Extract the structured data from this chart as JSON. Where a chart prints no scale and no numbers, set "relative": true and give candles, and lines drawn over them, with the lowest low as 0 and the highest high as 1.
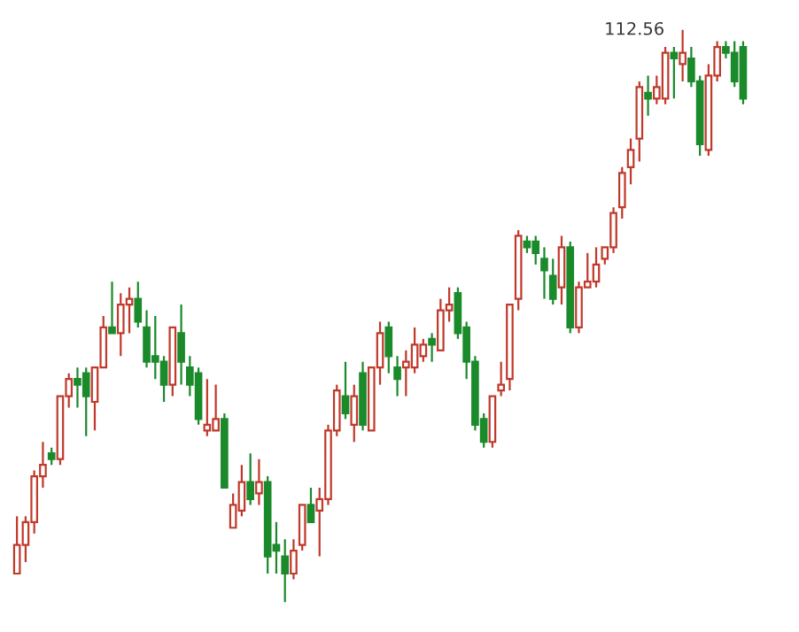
{
  "chart_data": {
    "type": "candlestick",
    "relative": true,
    "categories": [
      null,
      null,
      null,
      null,
      null,
      null,
      null,
      null,
      null,
      null,
      null,
      null,
      null,
      null,
      null,
      null,
      null,
      null,
      null,
      null,
      null,
      null,
      null,
      null,
      null,
      null,
      null,
      null,
      null,
      null,
      null,
      null,
      null,
      null,
      null,
      null,
      null,
      null,
      null,
      null,
      null,
      null,
      null,
      null,
      null,
      null,
      null,
      null,
      null,
      null,
      null,
      null,
      null,
      null,
      null,
      null,
      null,
      null,
      null,
      null,
      null,
      null,
      null,
      null,
      null,
      null,
      null,
      null,
      null,
      null,
      null,
      null,
      null,
      null,
      null,
      null,
      null,
      null,
      null,
      null,
      null,
      null,
      null,
      null,
      null
    ],
    "ohlc": [
      [
        0.05,
        0.15,
        0.05,
        0.1
      ],
      [
        0.1,
        0.15,
        0.07,
        0.14
      ],
      [
        0.14,
        0.23,
        0.12,
        0.22
      ],
      [
        0.22,
        0.28,
        0.2,
        0.24
      ],
      [
        0.26,
        0.27,
        0.24,
        0.25
      ],
      [
        0.25,
        0.36,
        0.24,
        0.36
      ],
      [
        0.36,
        0.4,
        0.34,
        0.39
      ],
      [
        0.39,
        0.41,
        0.34,
        0.38
      ],
      [
        0.4,
        0.41,
        0.29,
        0.36
      ],
      [
        0.35,
        0.41,
        0.3,
        0.41
      ],
      [
        0.41,
        0.5,
        0.41,
        0.48
      ],
      [
        0.48,
        0.56,
        0.47,
        0.47
      ],
      [
        0.47,
        0.54,
        0.43,
        0.52
      ],
      [
        0.52,
        0.55,
        0.47,
        0.53
      ],
      [
        0.53,
        0.56,
        0.48,
        0.49
      ],
      [
        0.48,
        0.51,
        0.41,
        0.42
      ],
      [
        0.43,
        0.5,
        0.39,
        0.42
      ],
      [
        0.42,
        0.43,
        0.35,
        0.38
      ],
      [
        0.38,
        0.48,
        0.36,
        0.48
      ],
      [
        0.47,
        0.52,
        0.38,
        0.42
      ],
      [
        0.41,
        0.43,
        0.36,
        0.38
      ],
      [
        0.4,
        0.41,
        0.31,
        0.32
      ],
      [
        0.3,
        0.39,
        0.29,
        0.31
      ],
      [
        0.3,
        0.38,
        0.3,
        0.32
      ],
      [
        0.32,
        0.33,
        0.2,
        0.2
      ],
      [
        0.13,
        0.19,
        0.13,
        0.17
      ],
      [
        0.16,
        0.24,
        0.15,
        0.21
      ],
      [
        0.21,
        0.26,
        0.17,
        0.18
      ],
      [
        0.19,
        0.25,
        0.17,
        0.21
      ],
      [
        0.21,
        0.22,
        0.05,
        0.08
      ],
      [
        0.1,
        0.14,
        0.05,
        0.09
      ],
      [
        0.08,
        0.11,
        0.0,
        0.05
      ],
      [
        0.05,
        0.11,
        0.04,
        0.09
      ],
      [
        0.1,
        0.17,
        0.09,
        0.17
      ],
      [
        0.17,
        0.2,
        0.14,
        0.14
      ],
      [
        0.16,
        0.2,
        0.08,
        0.18
      ],
      [
        0.18,
        0.31,
        0.17,
        0.3
      ],
      [
        0.3,
        0.38,
        0.29,
        0.37
      ],
      [
        0.36,
        0.42,
        0.32,
        0.33
      ],
      [
        0.31,
        0.38,
        0.28,
        0.36
      ],
      [
        0.4,
        0.42,
        0.3,
        0.31
      ],
      [
        0.3,
        0.41,
        0.3,
        0.41
      ],
      [
        0.41,
        0.49,
        0.38,
        0.47
      ],
      [
        0.48,
        0.49,
        0.4,
        0.43
      ],
      [
        0.41,
        0.43,
        0.36,
        0.39
      ],
      [
        0.41,
        0.44,
        0.36,
        0.42
      ],
      [
        0.41,
        0.48,
        0.4,
        0.45
      ],
      [
        0.43,
        0.46,
        0.42,
        0.45
      ],
      [
        0.46,
        0.47,
        0.42,
        0.45
      ],
      [
        0.44,
        0.53,
        0.44,
        0.51
      ],
      [
        0.51,
        0.55,
        0.49,
        0.52
      ],
      [
        0.54,
        0.55,
        0.46,
        0.47
      ],
      [
        0.48,
        0.49,
        0.39,
        0.42
      ],
      [
        0.42,
        0.43,
        0.3,
        0.31
      ],
      [
        0.32,
        0.33,
        0.27,
        0.28
      ],
      [
        0.28,
        0.36,
        0.27,
        0.36
      ],
      [
        0.37,
        0.42,
        0.36,
        0.38
      ],
      [
        0.39,
        0.52,
        0.37,
        0.52
      ],
      [
        0.53,
        0.65,
        0.51,
        0.64
      ],
      [
        0.63,
        0.64,
        0.61,
        0.62
      ],
      [
        0.63,
        0.64,
        0.59,
        0.61
      ],
      [
        0.6,
        0.62,
        0.53,
        0.58
      ],
      [
        0.57,
        0.6,
        0.52,
        0.53
      ],
      [
        0.55,
        0.64,
        0.52,
        0.62
      ],
      [
        0.62,
        0.63,
        0.47,
        0.48
      ],
      [
        0.48,
        0.56,
        0.47,
        0.55
      ],
      [
        0.55,
        0.61,
        0.55,
        0.56
      ],
      [
        0.56,
        0.62,
        0.55,
        0.59
      ],
      [
        0.6,
        0.62,
        0.59,
        0.62
      ],
      [
        0.62,
        0.69,
        0.61,
        0.68
      ],
      [
        0.69,
        0.76,
        0.67,
        0.75
      ],
      [
        0.76,
        0.81,
        0.73,
        0.79
      ],
      [
        0.81,
        0.91,
        0.77,
        0.9
      ],
      [
        0.89,
        0.92,
        0.85,
        0.88
      ],
      [
        0.88,
        0.92,
        0.87,
        0.9
      ],
      [
        0.88,
        0.97,
        0.87,
        0.96
      ],
      [
        0.96,
        0.97,
        0.88,
        0.95
      ],
      [
        0.94,
        1.0,
        0.91,
        0.96
      ],
      [
        0.95,
        0.97,
        0.9,
        0.91
      ],
      [
        0.91,
        0.92,
        0.78,
        0.8
      ],
      [
        0.79,
        0.94,
        0.78,
        0.92
      ],
      [
        0.92,
        0.98,
        0.91,
        0.97
      ],
      [
        0.97,
        0.98,
        0.95,
        0.96
      ],
      [
        0.96,
        0.98,
        0.9,
        0.91
      ],
      [
        0.97,
        0.98,
        0.87,
        0.88
      ]
    ],
    "annotations": [
      "112.56"
    ]
  }
}
